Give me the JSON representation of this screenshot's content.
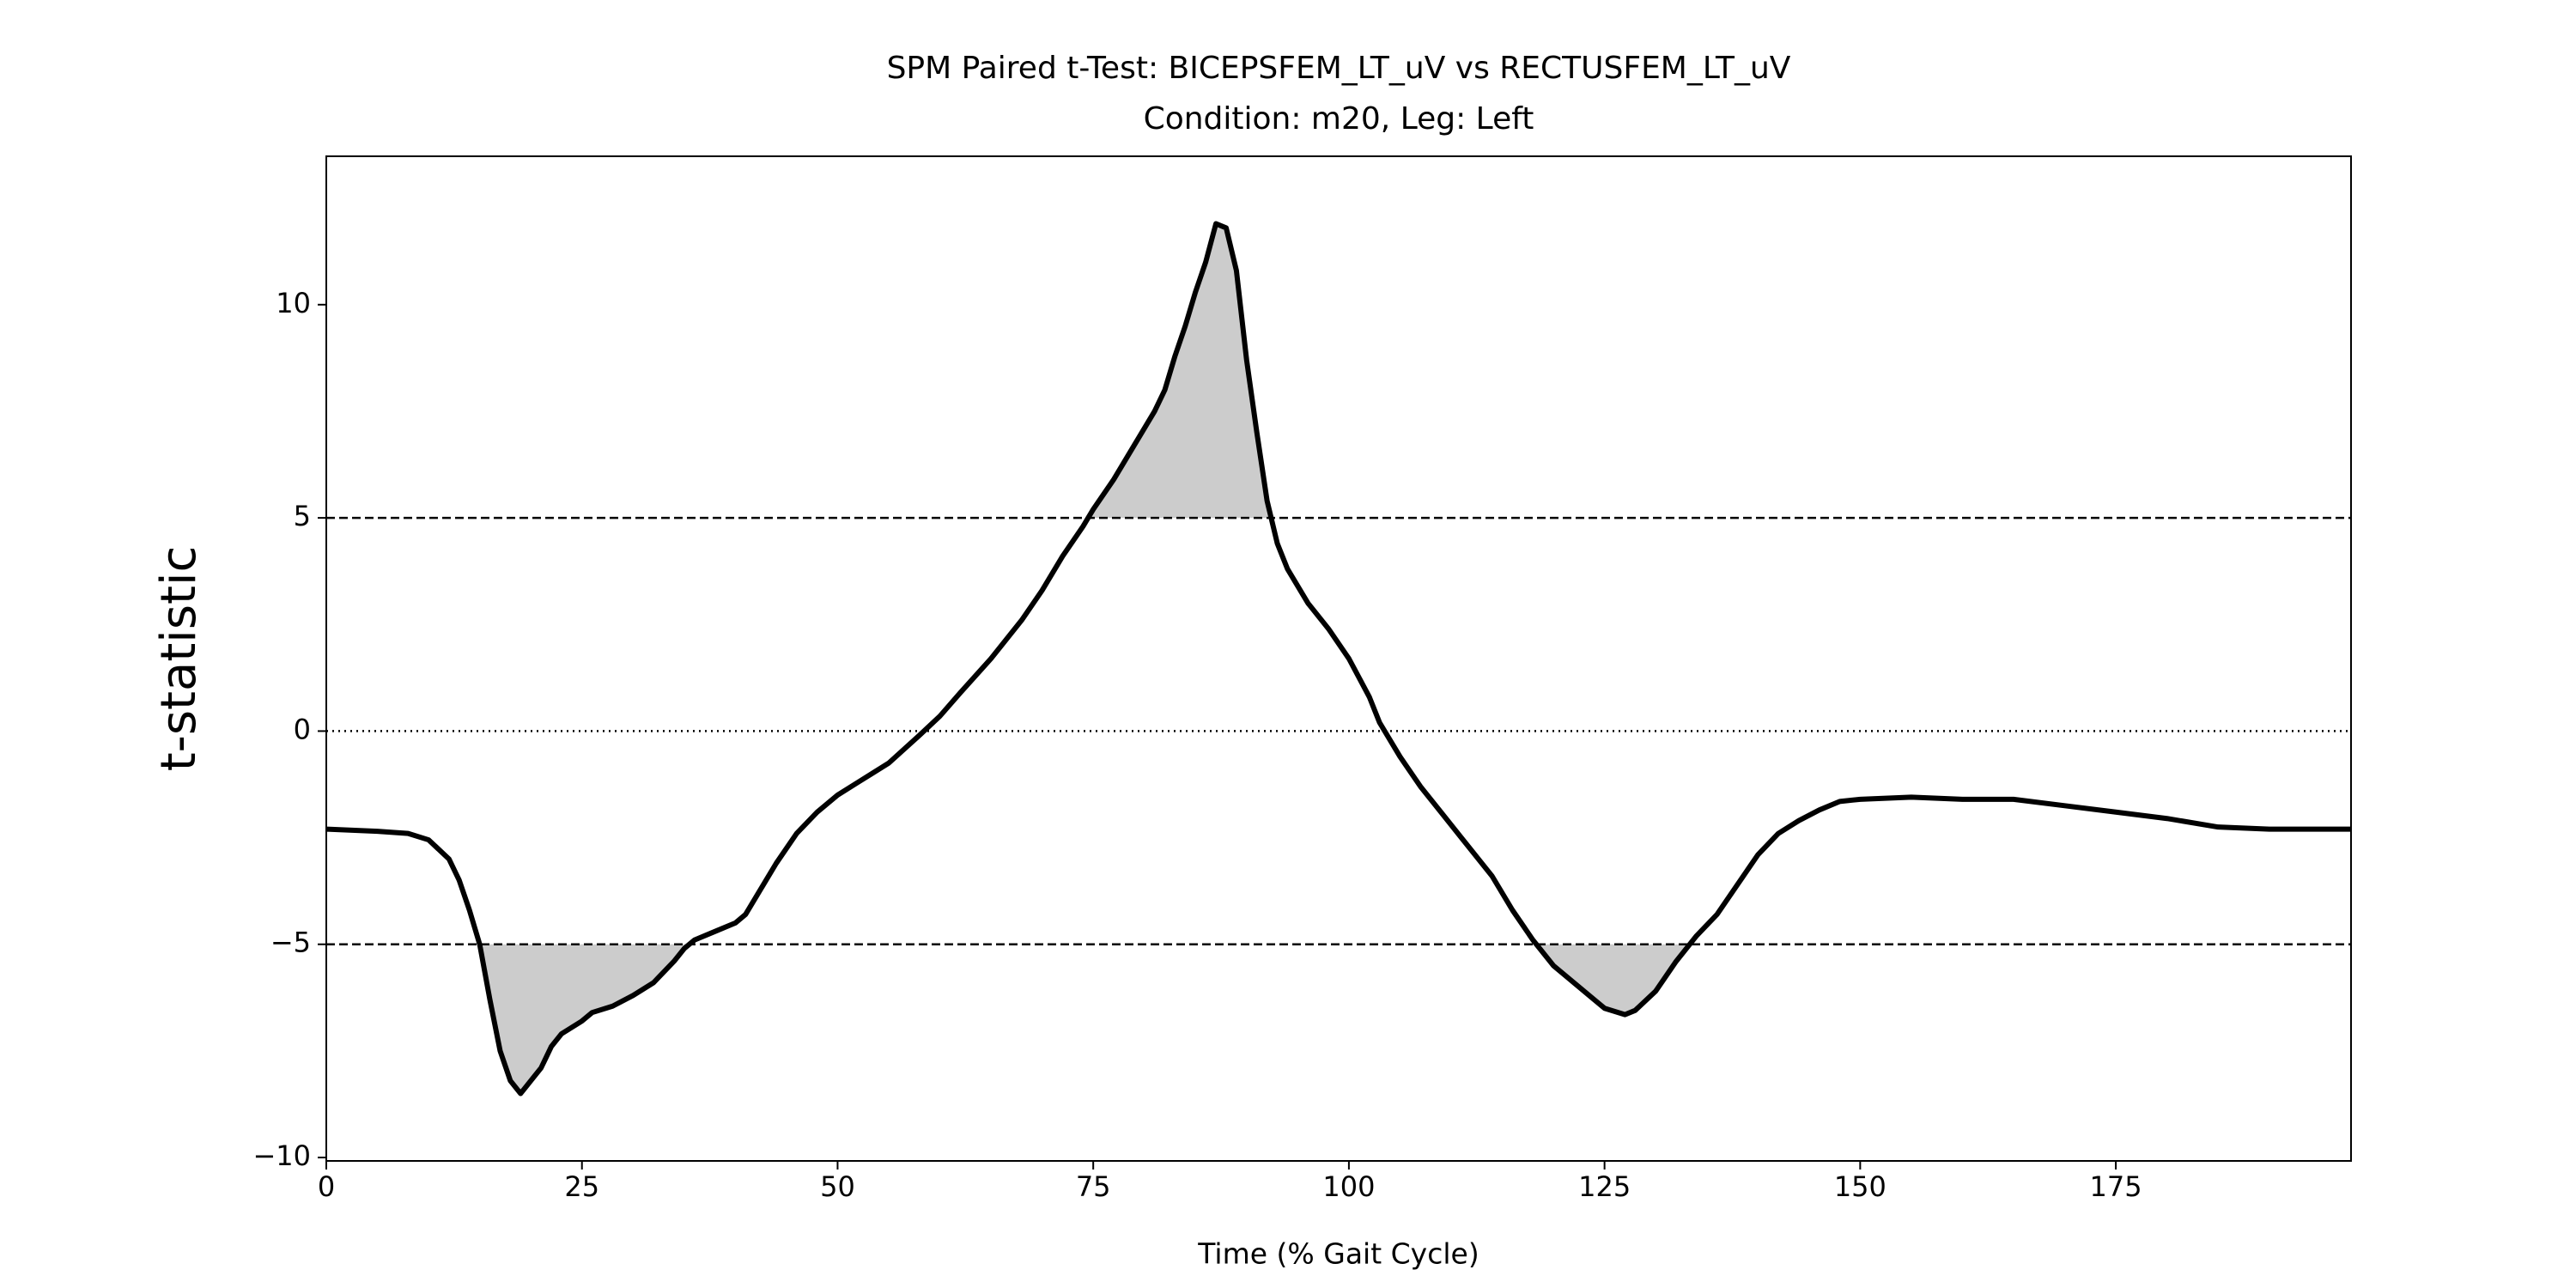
{
  "chart_data": {
    "type": "line",
    "title": "SPM Paired t-Test: BICEPSFEM_LT_uV vs RECTUSFEM_LT_uV",
    "subtitle": "Condition: m20, Leg: Left",
    "x_label": "Time (% Gait Cycle)",
    "y_label": "t-statistic",
    "x": [
      0,
      5,
      8,
      10,
      12,
      13,
      14,
      15,
      16,
      17,
      18,
      19,
      20,
      21,
      22,
      23,
      25,
      26,
      28,
      30,
      32,
      34,
      35,
      36,
      38,
      40,
      41,
      42,
      44,
      46,
      48,
      50,
      52,
      55,
      58,
      60,
      62,
      65,
      68,
      70,
      72,
      74,
      75,
      77,
      79,
      81,
      82,
      83,
      84,
      85,
      86,
      87,
      88,
      89,
      90,
      91,
      92,
      93,
      94,
      96,
      98,
      100,
      102,
      103,
      105,
      107,
      109,
      111,
      113,
      114,
      116,
      118,
      120,
      122,
      124,
      125,
      127,
      128,
      130,
      132,
      134,
      136,
      138,
      140,
      142,
      144,
      146,
      148,
      150,
      155,
      160,
      165,
      170,
      175,
      180,
      185,
      190,
      195,
      198
    ],
    "series": [
      {
        "name": "t-statistic",
        "color": "#000000",
        "values": [
          -2.3,
          -2.35,
          -2.4,
          -2.55,
          -3.0,
          -3.5,
          -4.2,
          -5.0,
          -6.3,
          -7.5,
          -8.2,
          -8.5,
          -8.2,
          -7.9,
          -7.4,
          -7.1,
          -6.8,
          -6.6,
          -6.45,
          -6.2,
          -5.9,
          -5.4,
          -5.1,
          -4.9,
          -4.7,
          -4.5,
          -4.3,
          -3.9,
          -3.1,
          -2.4,
          -1.9,
          -1.5,
          -1.2,
          -0.75,
          -0.1,
          0.35,
          0.9,
          1.7,
          2.6,
          3.3,
          4.1,
          4.8,
          5.2,
          5.9,
          6.7,
          7.5,
          8.0,
          8.8,
          9.5,
          10.3,
          11.0,
          11.9,
          11.8,
          10.8,
          8.7,
          7.0,
          5.4,
          4.4,
          3.8,
          3.0,
          2.4,
          1.7,
          0.8,
          0.2,
          -0.6,
          -1.3,
          -1.9,
          -2.5,
          -3.1,
          -3.4,
          -4.2,
          -4.9,
          -5.5,
          -5.9,
          -6.3,
          -6.5,
          -6.65,
          -6.55,
          -6.1,
          -5.4,
          -4.8,
          -4.3,
          -3.6,
          -2.9,
          -2.4,
          -2.1,
          -1.85,
          -1.65,
          -1.6,
          -1.55,
          -1.6,
          -1.6,
          -1.75,
          -1.9,
          -2.05,
          -2.25,
          -2.3,
          -2.3,
          -2.3
        ]
      }
    ],
    "thresholds": [
      5,
      -5
    ],
    "cluster_fill": "#cccccc",
    "xlim": [
      0,
      198
    ],
    "xticks": [
      0,
      25,
      50,
      75,
      100,
      125,
      150,
      175
    ],
    "ylim": [
      -10.08,
      13.48
    ],
    "yticks": [
      {
        "value": -10,
        "label": "−10"
      },
      {
        "value": -5,
        "label": "−5"
      },
      0,
      5,
      10
    ]
  }
}
